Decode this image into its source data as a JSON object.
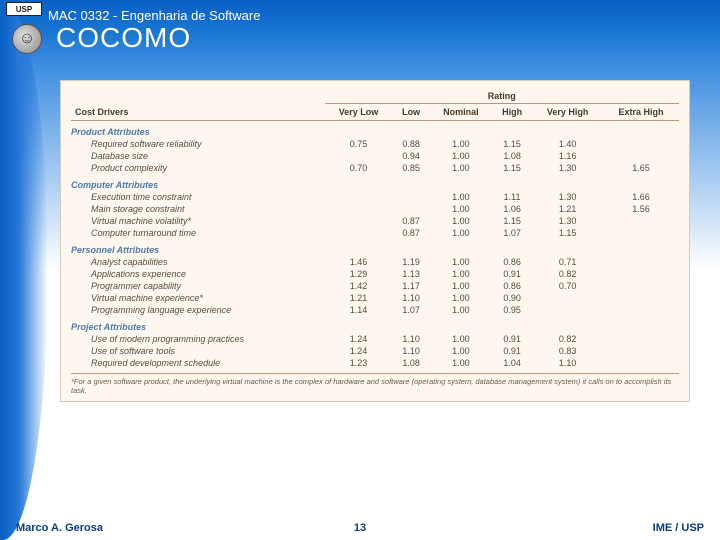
{
  "course": "MAC 0332 - Engenharia de Software",
  "title": "COCOMO",
  "logo_text": "USP",
  "table": {
    "corner": "Cost Drivers",
    "rating_label": "Rating",
    "columns": [
      "Very Low",
      "Low",
      "Nominal",
      "High",
      "Very High",
      "Extra High"
    ],
    "groups": [
      {
        "name": "Product Attributes",
        "rows": [
          {
            "label": "Required software reliability",
            "vals": [
              "0.75",
              "0.88",
              "1.00",
              "1.15",
              "1.40",
              ""
            ]
          },
          {
            "label": "Database size",
            "vals": [
              "",
              "0.94",
              "1.00",
              "1.08",
              "1.16",
              ""
            ]
          },
          {
            "label": "Product complexity",
            "vals": [
              "0.70",
              "0.85",
              "1.00",
              "1.15",
              "1.30",
              "1.65"
            ]
          }
        ]
      },
      {
        "name": "Computer Attributes",
        "rows": [
          {
            "label": "Execution time constraint",
            "vals": [
              "",
              "",
              "1.00",
              "1.11",
              "1.30",
              "1.66"
            ]
          },
          {
            "label": "Main storage constraint",
            "vals": [
              "",
              "",
              "1.00",
              "1.06",
              "1.21",
              "1.56"
            ]
          },
          {
            "label": "Virtual machine volatility*",
            "vals": [
              "",
              "0.87",
              "1.00",
              "1.15",
              "1.30",
              ""
            ]
          },
          {
            "label": "Computer turnaround time",
            "vals": [
              "",
              "0.87",
              "1.00",
              "1.07",
              "1.15",
              ""
            ]
          }
        ]
      },
      {
        "name": "Personnel Attributes",
        "rows": [
          {
            "label": "Analyst capabilities",
            "vals": [
              "1.46",
              "1.19",
              "1.00",
              "0.86",
              "0.71",
              ""
            ]
          },
          {
            "label": "Applications experience",
            "vals": [
              "1.29",
              "1.13",
              "1.00",
              "0.91",
              "0.82",
              ""
            ]
          },
          {
            "label": "Programmer capability",
            "vals": [
              "1.42",
              "1.17",
              "1.00",
              "0.86",
              "0.70",
              ""
            ]
          },
          {
            "label": "Virtual machine experience*",
            "vals": [
              "1.21",
              "1.10",
              "1.00",
              "0.90",
              "",
              ""
            ]
          },
          {
            "label": "Programming language experience",
            "vals": [
              "1.14",
              "1.07",
              "1.00",
              "0.95",
              "",
              ""
            ]
          }
        ]
      },
      {
        "name": "Project Attributes",
        "rows": [
          {
            "label": "Use of modern programming practices",
            "vals": [
              "1.24",
              "1.10",
              "1.00",
              "0.91",
              "0.82",
              ""
            ]
          },
          {
            "label": "Use of software tools",
            "vals": [
              "1.24",
              "1.10",
              "1.00",
              "0.91",
              "0.83",
              ""
            ]
          },
          {
            "label": "Required development schedule",
            "vals": [
              "1.23",
              "1.08",
              "1.00",
              "1.04",
              "1.10",
              ""
            ]
          }
        ]
      }
    ],
    "footnote": "*For a given software product, the underlying virtual machine is the complex of hardware and software (operating system, database management system) it calls on to accomplish its task.",
    "colors": {
      "panel_bg": "#fdf7f0",
      "border": "#b89a7a",
      "group_color": "#4e7aa8",
      "text": "#5a4a3a"
    }
  },
  "footer": {
    "author": "Marco A. Gerosa",
    "page": "13",
    "org": "IME / USP"
  }
}
